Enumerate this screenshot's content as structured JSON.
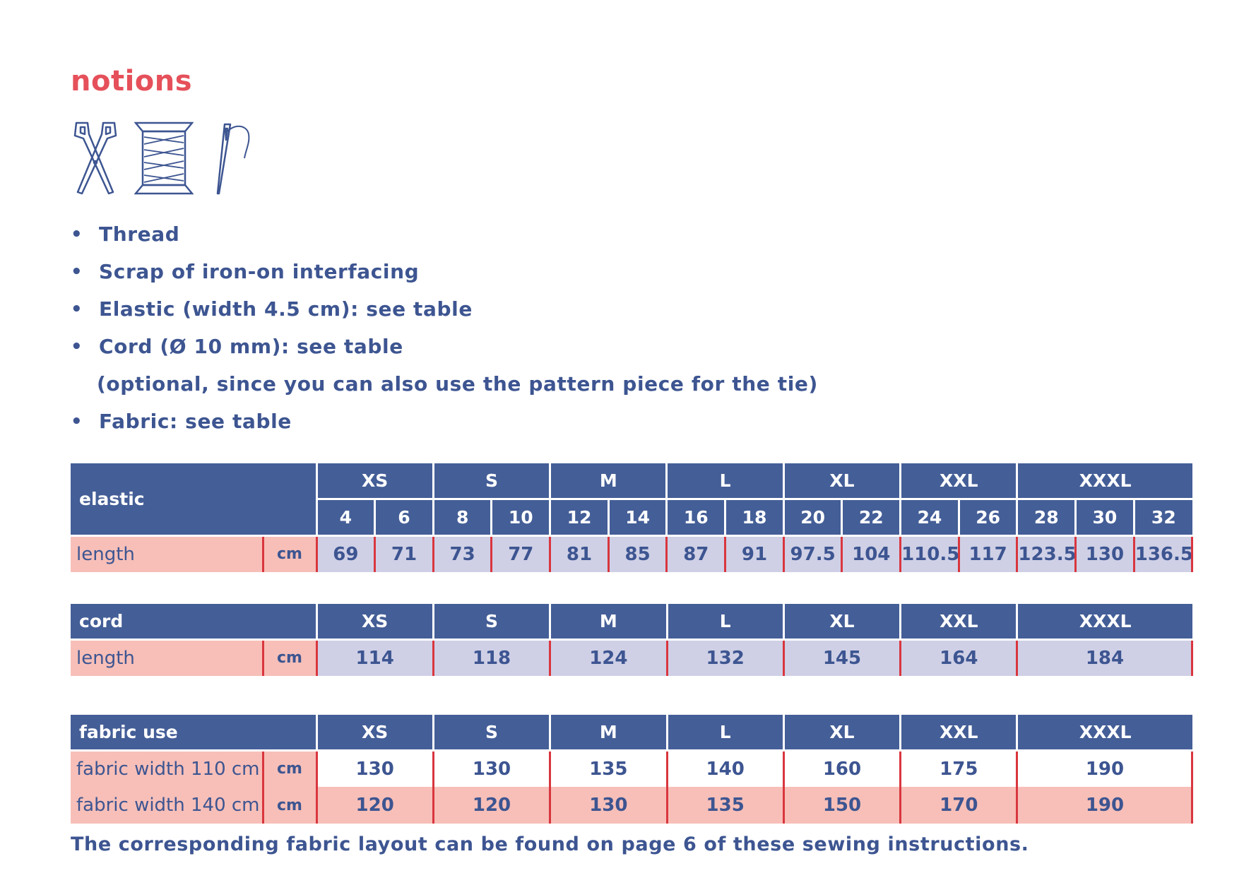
{
  "page": {
    "title": "notions",
    "footnote": "The corresponding fabric layout can be found on page 6 of these sewing instructions."
  },
  "icons": [
    "scissors-icon",
    "thread-spool-icon",
    "needle-icon"
  ],
  "colors": {
    "accent": "#e5505a",
    "text": "#3d5591",
    "header_bg": "#445e97",
    "row_pink": "#f7bfb8",
    "row_lavender": "#cfd0e6",
    "divider_red": "#d9363e"
  },
  "notions": [
    {
      "text": "Thread",
      "bullet": true
    },
    {
      "text": "Scrap of iron-on interfacing",
      "bullet": true
    },
    {
      "text": "Elastic (width 4.5 cm): see table",
      "bullet": true
    },
    {
      "text": "Cord (Ø 10 mm): see table",
      "bullet": true
    },
    {
      "text": "(optional, since you can also use the pattern piece for the tie)",
      "bullet": false
    },
    {
      "text": "Fabric: see table",
      "bullet": true
    }
  ],
  "sizes": [
    "XS",
    "S",
    "M",
    "L",
    "XL",
    "XXL",
    "XXXL"
  ],
  "elastic_table": {
    "title": "elastic",
    "numeric_sizes": [
      "4",
      "6",
      "8",
      "10",
      "12",
      "14",
      "16",
      "18",
      "20",
      "22",
      "24",
      "26",
      "28",
      "30",
      "32"
    ],
    "row": {
      "label": "length",
      "unit": "cm",
      "values": [
        "69",
        "71",
        "73",
        "77",
        "81",
        "85",
        "87",
        "91",
        "97.5",
        "104",
        "110.5",
        "117",
        "123.5",
        "130",
        "136.5"
      ]
    }
  },
  "cord_table": {
    "title": "cord",
    "row": {
      "label": "length",
      "unit": "cm",
      "values": [
        "114",
        "118",
        "124",
        "132",
        "145",
        "164",
        "184"
      ]
    }
  },
  "fabric_table": {
    "title": "fabric use",
    "rows": [
      {
        "label": "fabric width 110 cm",
        "unit": "cm",
        "values": [
          "130",
          "130",
          "135",
          "140",
          "160",
          "175",
          "190"
        ]
      },
      {
        "label": "fabric width 140 cm",
        "unit": "cm",
        "values": [
          "120",
          "120",
          "130",
          "135",
          "150",
          "170",
          "190"
        ]
      }
    ]
  }
}
